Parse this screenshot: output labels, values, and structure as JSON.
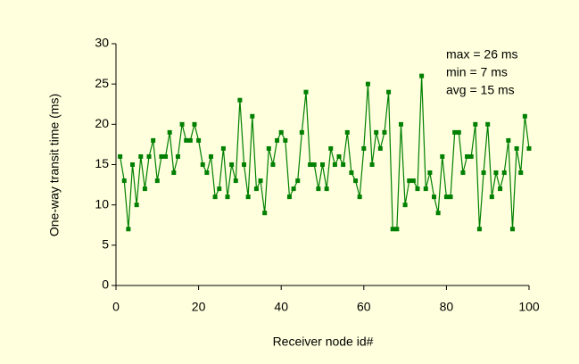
{
  "chart_data": {
    "type": "line",
    "xlabel": "Receiver node id#",
    "ylabel": "One-way transit time (ms)",
    "annotations": [
      "max = 26 ms",
      "min = 7 ms",
      "avg = 15 ms"
    ],
    "x": [
      1,
      2,
      3,
      4,
      5,
      6,
      7,
      8,
      9,
      10,
      11,
      12,
      13,
      14,
      15,
      16,
      17,
      18,
      19,
      20,
      21,
      22,
      23,
      24,
      25,
      26,
      27,
      28,
      29,
      30,
      31,
      32,
      33,
      34,
      35,
      36,
      37,
      38,
      39,
      40,
      41,
      42,
      43,
      44,
      45,
      46,
      47,
      48,
      49,
      50,
      51,
      52,
      53,
      54,
      55,
      56,
      57,
      58,
      59,
      60,
      61,
      62,
      63,
      64,
      65,
      66,
      67,
      68,
      69,
      70,
      71,
      72,
      73,
      74,
      75,
      76,
      77,
      78,
      79,
      80,
      81,
      82,
      83,
      84,
      85,
      86,
      87,
      88,
      89,
      90,
      91,
      92,
      93,
      94,
      95,
      96,
      97,
      98,
      99,
      100
    ],
    "series": [
      {
        "color": "#008000",
        "values": [
          16,
          13,
          7,
          15,
          10,
          16,
          12,
          16,
          18,
          13,
          16,
          16,
          19,
          14,
          16,
          20,
          18,
          18,
          20,
          18,
          15,
          14,
          16,
          11,
          12,
          17,
          11,
          15,
          13,
          23,
          15,
          11,
          21,
          12,
          13,
          9,
          17,
          15,
          18,
          19,
          18,
          11,
          12,
          13,
          19,
          24,
          15,
          15,
          12,
          15,
          12,
          17,
          15,
          16,
          15,
          19,
          14,
          13,
          11,
          17,
          25,
          15,
          19,
          17,
          19,
          24,
          7,
          7,
          20,
          10,
          13,
          13,
          12,
          26,
          12,
          14,
          11,
          9,
          16,
          11,
          11,
          19,
          19,
          14,
          16,
          16,
          20,
          7,
          14,
          20,
          11,
          14,
          12,
          14,
          18,
          7,
          17,
          14,
          21,
          17
        ]
      }
    ],
    "xlim": [
      0,
      100
    ],
    "xticks": [
      0,
      20,
      40,
      60,
      80,
      100
    ],
    "ylim": [
      0,
      30
    ],
    "yticks": [
      0,
      5,
      10,
      15,
      20,
      25,
      30
    ],
    "grid": false
  }
}
